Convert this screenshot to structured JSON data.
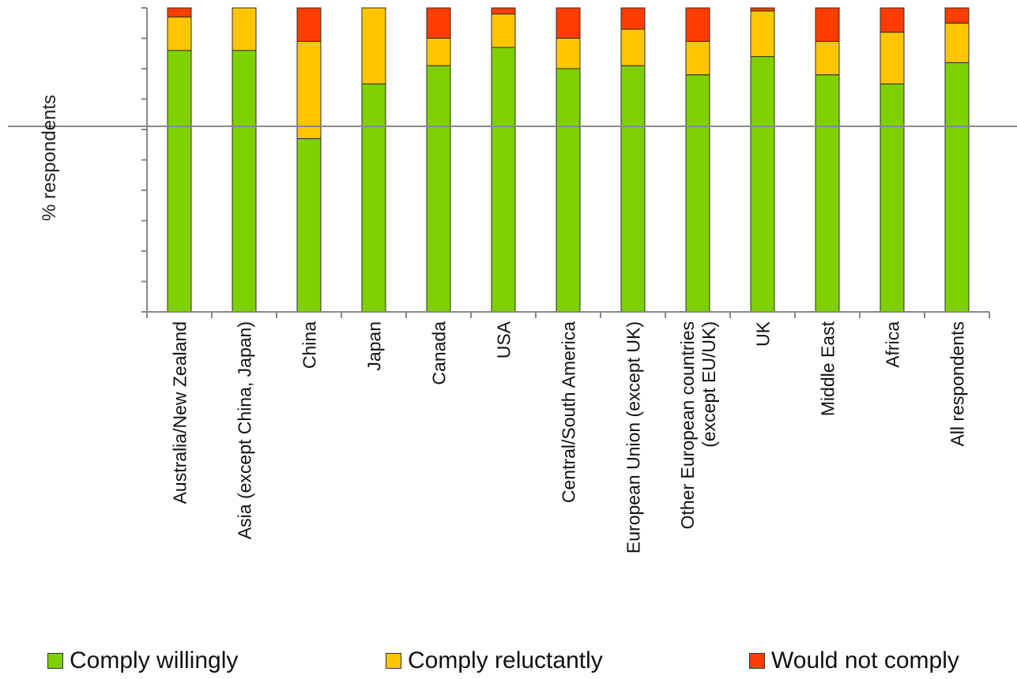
{
  "chart_data": {
    "type": "bar",
    "stacked": true,
    "ylabel": "% respondents",
    "ylim": [
      0,
      100
    ],
    "grid": false,
    "legend_placement": "bottom",
    "categories": [
      "Australia/New Zealand",
      "Asia (except China, Japan)",
      "China",
      "Japan",
      "Canada",
      "USA",
      "Central/South America",
      "European Union (except UK)",
      "Other European countries\n(except EU/UK)",
      "UK",
      "Middle East",
      "Africa",
      "All respondents"
    ],
    "series": [
      {
        "name": "Comply willingly",
        "color": "#7ED000",
        "values": [
          86,
          86,
          57,
          75,
          81,
          87,
          80,
          81,
          78,
          84,
          78,
          75,
          82
        ]
      },
      {
        "name": "Comply reluctantly",
        "color": "#FFC600",
        "values": [
          11,
          14,
          32,
          25,
          9,
          11,
          10,
          12,
          11,
          15,
          11,
          17,
          13
        ]
      },
      {
        "name": "Would not comply",
        "color": "#FF3D00",
        "values": [
          3,
          0,
          11,
          0,
          10,
          2,
          10,
          7,
          11,
          1,
          11,
          8,
          5
        ]
      }
    ]
  }
}
